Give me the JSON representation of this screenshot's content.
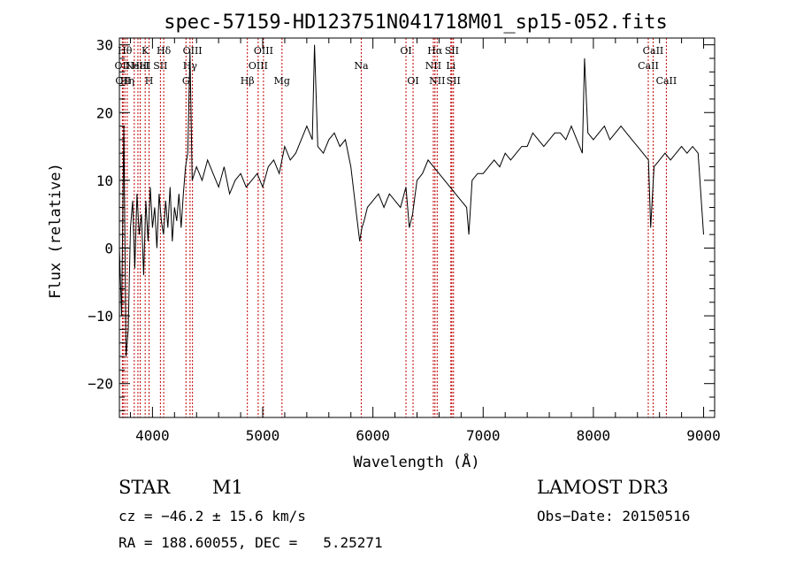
{
  "chart_data": {
    "type": "line",
    "title": "spec-57159-HD123751N041718M01_sp15-052.fits",
    "xlabel": "Wavelength (Å)",
    "ylabel": "Flux (relative)",
    "xlim": [
      3700,
      9100
    ],
    "ylim": [
      -25,
      31
    ],
    "x_ticks": [
      4000,
      5000,
      6000,
      7000,
      8000,
      9000
    ],
    "y_ticks": [
      -20,
      -10,
      0,
      10,
      20,
      30
    ],
    "grid": false,
    "line_color": "#000000",
    "marker_color": "#c00000",
    "series": [
      {
        "x": [
          3700,
          3720,
          3740,
          3760,
          3780,
          3800,
          3820,
          3840,
          3860,
          3880,
          3900,
          3920,
          3940,
          3960,
          3980,
          4000,
          4020,
          4040,
          4060,
          4080,
          4100,
          4120,
          4140,
          4160,
          4180,
          4200,
          4220,
          4240,
          4260,
          4280,
          4300,
          4320,
          4340,
          4360,
          4400,
          4450,
          4500,
          4550,
          4600,
          4650,
          4700,
          4750,
          4800,
          4850,
          4900,
          4950,
          5000,
          5050,
          5100,
          5150,
          5200,
          5250,
          5300,
          5350,
          5400,
          5450,
          5470,
          5500,
          5550,
          5600,
          5650,
          5700,
          5750,
          5800,
          5850,
          5880,
          5900,
          5920,
          5950,
          6000,
          6050,
          6100,
          6150,
          6200,
          6250,
          6300,
          6330,
          6360,
          6400,
          6450,
          6500,
          6550,
          6600,
          6650,
          6700,
          6750,
          6800,
          6850,
          6870,
          6900,
          6950,
          7000,
          7050,
          7100,
          7150,
          7200,
          7250,
          7300,
          7350,
          7400,
          7450,
          7500,
          7550,
          7600,
          7650,
          7700,
          7750,
          7800,
          7850,
          7900,
          7920,
          7950,
          8000,
          8050,
          8100,
          8150,
          8200,
          8250,
          8300,
          8350,
          8400,
          8450,
          8500,
          8520,
          8550,
          8600,
          8650,
          8700,
          8750,
          8800,
          8850,
          8900,
          8950,
          9000
        ],
        "y": [
          0,
          -10,
          18,
          -16,
          -12,
          3,
          7,
          -3,
          8,
          2,
          5,
          -4,
          7,
          1,
          9,
          3,
          6,
          0,
          8,
          4,
          2,
          7,
          3,
          9,
          1,
          6,
          4,
          8,
          3,
          8,
          12,
          14,
          29,
          10,
          12,
          10,
          13,
          11,
          9,
          12,
          8,
          10,
          11,
          9,
          10,
          11,
          9,
          12,
          13,
          11,
          15,
          13,
          14,
          16,
          18,
          16,
          30,
          15,
          14,
          16,
          17,
          15,
          16,
          12,
          5,
          1,
          3,
          4,
          6,
          7,
          8,
          6,
          8,
          7,
          6,
          9,
          3,
          5,
          10,
          11,
          13,
          12,
          11,
          10,
          9,
          8,
          7,
          6,
          2,
          10,
          11,
          11,
          12,
          13,
          12,
          14,
          13,
          14,
          15,
          15,
          17,
          16,
          15,
          16,
          17,
          17,
          16,
          18,
          16,
          14,
          28,
          17,
          16,
          17,
          18,
          16,
          17,
          18,
          17,
          16,
          15,
          14,
          13,
          3,
          12,
          13,
          14,
          13,
          14,
          15,
          14,
          15,
          14,
          2
        ]
      }
    ],
    "lines": [
      {
        "x": 3727,
        "label": "OII",
        "row": 2
      },
      {
        "x": 3734,
        "label": "OII",
        "row": 3
      },
      {
        "x": 3750,
        "label": "Hθ",
        "row": 1
      },
      {
        "x": 3771,
        "label": "Hη",
        "row": 3
      },
      {
        "x": 3835,
        "label": "",
        "row": 0
      },
      {
        "x": 3868,
        "label": "NeIII",
        "row": 2
      },
      {
        "x": 3889,
        "label": "HeI",
        "row": 2
      },
      {
        "x": 3934,
        "label": "K",
        "row": 1
      },
      {
        "x": 3969,
        "label": "H",
        "row": 3
      },
      {
        "x": 4072,
        "label": "SII",
        "row": 2
      },
      {
        "x": 4102,
        "label": "Hδ",
        "row": 1
      },
      {
        "x": 4304,
        "label": "G",
        "row": 3
      },
      {
        "x": 4341,
        "label": "Hγ",
        "row": 2
      },
      {
        "x": 4363,
        "label": "OIII",
        "row": 1
      },
      {
        "x": 4861,
        "label": "Hβ",
        "row": 3
      },
      {
        "x": 4959,
        "label": "OIII",
        "row": 2
      },
      {
        "x": 5007,
        "label": "OIII",
        "row": 1
      },
      {
        "x": 5175,
        "label": "Mg",
        "row": 3
      },
      {
        "x": 5894,
        "label": "Na",
        "row": 2
      },
      {
        "x": 6300,
        "label": "OI",
        "row": 1
      },
      {
        "x": 6364,
        "label": "OI",
        "row": 3
      },
      {
        "x": 6548,
        "label": "NII",
        "row": 2
      },
      {
        "x": 6563,
        "label": "Hα",
        "row": 1
      },
      {
        "x": 6583,
        "label": "NII",
        "row": 3
      },
      {
        "x": 6707,
        "label": "Li",
        "row": 2
      },
      {
        "x": 6716,
        "label": "SII",
        "row": 1
      },
      {
        "x": 6731,
        "label": "SII",
        "row": 3
      },
      {
        "x": 8498,
        "label": "CaII",
        "row": 2
      },
      {
        "x": 8542,
        "label": "CaII",
        "row": 1
      },
      {
        "x": 8662,
        "label": "CaII",
        "row": 3
      }
    ]
  },
  "info": {
    "class": "STAR",
    "subclass": "M1",
    "survey": "LAMOST DR3",
    "cz": "cz = −46.2 ± 15.6 km/s",
    "obs_date": "Obs−Date: 20150516",
    "radec": "RA = 188.60055, DEC =   5.25271"
  }
}
